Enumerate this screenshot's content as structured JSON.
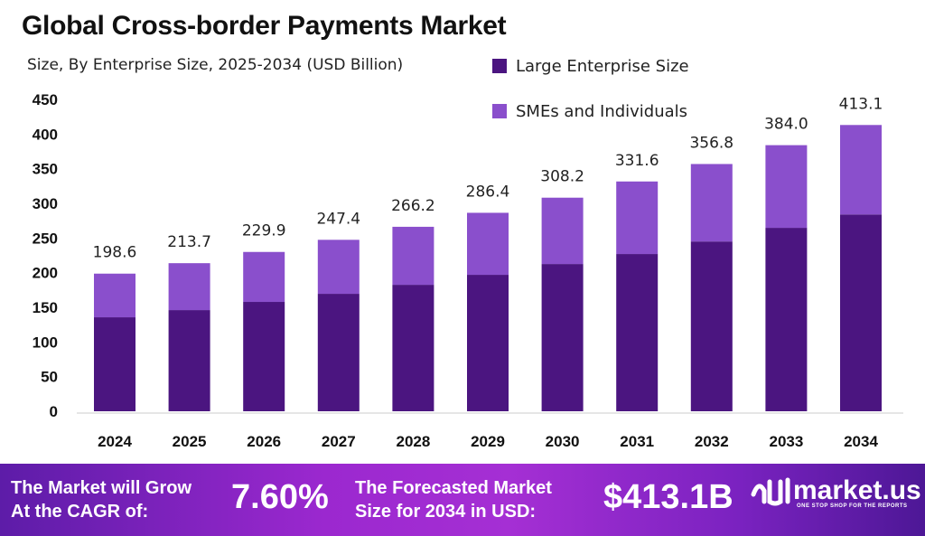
{
  "chart_data": {
    "type": "bar",
    "stacked": true,
    "title": "Global Cross-border Payments Market",
    "subtitle": "Size, By Enterprise Size, 2025-2034 (USD Billion)",
    "categories": [
      "2024",
      "2025",
      "2026",
      "2027",
      "2028",
      "2029",
      "2030",
      "2031",
      "2032",
      "2033",
      "2034"
    ],
    "series": [
      {
        "name": "Large Enterprise Size",
        "color": "#4b1580",
        "values": [
          135.6,
          146.0,
          157.8,
          169.5,
          182.5,
          196.9,
          212.5,
          226.9,
          245.0,
          264.7,
          284.0
        ]
      },
      {
        "name": "SMEs and Individuals",
        "color": "#8a4fcc",
        "values": [
          63.0,
          67.7,
          72.1,
          77.9,
          83.7,
          89.5,
          95.7,
          104.7,
          111.8,
          119.3,
          129.1
        ]
      }
    ],
    "totals": [
      "198.6",
      "213.7",
      "229.9",
      "247.4",
      "266.2",
      "286.4",
      "308.2",
      "331.6",
      "356.8",
      "384.0",
      "413.1"
    ],
    "ylim": [
      0,
      450
    ],
    "yticks": [
      "0",
      "50",
      "100",
      "150",
      "200",
      "250",
      "300",
      "350",
      "400",
      "450"
    ],
    "grid": false,
    "legend_position": "top-right"
  },
  "banner": {
    "cagr_label_1": "The Market will Grow",
    "cagr_label_2": "At the CAGR of:",
    "cagr_value": "7.60%",
    "forecast_label_1": "The Forecasted Market",
    "forecast_label_2": "Size for 2034 in USD:",
    "forecast_value": "$413.1B",
    "logo_text": "market.us",
    "logo_tagline": "ONE STOP SHOP FOR THE REPORTS"
  }
}
